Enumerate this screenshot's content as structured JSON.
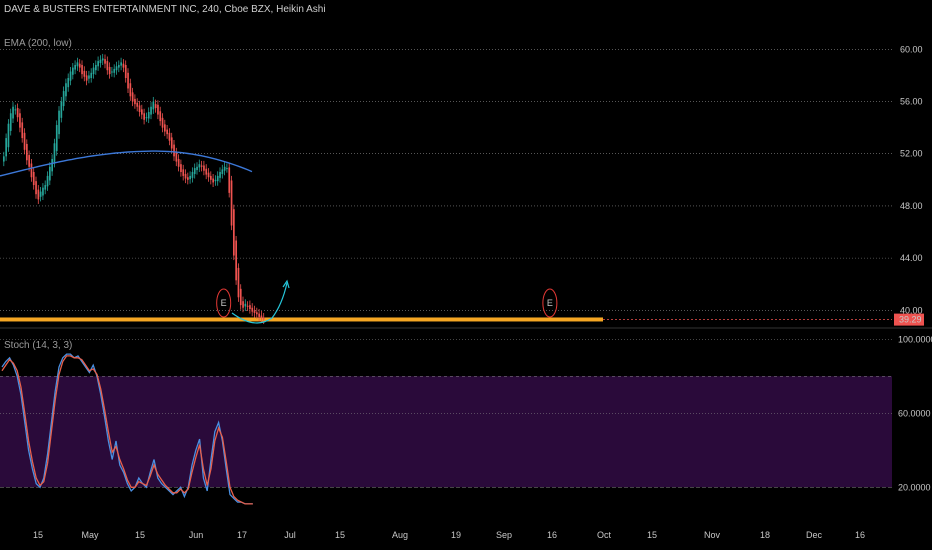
{
  "header": {
    "title": "DAVE & BUSTERS ENTERTAINMENT INC, 240, Cboe BZX, Heikin Ashi",
    "ema_label": "EMA (200, low)",
    "stoch_label": "Stoch (14, 3, 3)"
  },
  "colors": {
    "background": "#000000",
    "candle_up": "#26a69a",
    "candle_down": "#ef5350",
    "ema": "#3c78d8",
    "support_line": "#f5a623",
    "stoch_k": "#4a90e2",
    "stoch_d": "#e8604c",
    "stoch_band": "#2a0a3a",
    "grid": "#8a8a8a",
    "price_tag": "#ef5350",
    "earnings_marker": "#e53935",
    "projection_arrow": "#26c6da"
  },
  "chart_data": [
    {
      "type": "candlestick",
      "title": "DAVE & BUSTERS ENTERTAINMENT INC, 240, Cboe BZX, Heikin Ashi",
      "y_ticks": [
        "60.00",
        "56.00",
        "52.00",
        "48.00",
        "44.00",
        "40.00"
      ],
      "ylim": [
        38.8,
        62.4
      ],
      "x_ticks": [
        "15",
        "May",
        "15",
        "Jun",
        "17",
        "Jul",
        "15",
        "Aug",
        "19",
        "Sep",
        "16",
        "Oct",
        "15",
        "Nov",
        "18",
        "Dec",
        "16"
      ],
      "last_price_label": "39.29",
      "last_price": 39.29,
      "support_level": 39.3,
      "ema": {
        "name": "EMA (200, low)",
        "from": 50.3,
        "peak": 52.2,
        "to": 50.6
      },
      "candles_close": [
        51.8,
        53.2,
        54.3,
        55.1,
        55.6,
        55.4,
        54.8,
        54.0,
        53.2,
        52.3,
        51.5,
        51.0,
        50.2,
        49.6,
        48.9,
        48.5,
        49.1,
        49.4,
        49.6,
        50.3,
        51.0,
        51.6,
        52.8,
        54.2,
        55.3,
        56.0,
        56.8,
        57.4,
        57.8,
        58.3,
        58.6,
        58.8,
        59.0,
        58.6,
        58.1,
        57.9,
        57.6,
        58.0,
        58.2,
        58.6,
        58.8,
        59.1,
        59.2,
        59.3,
        58.9,
        58.4,
        58.1,
        58.3,
        58.5,
        58.7,
        58.8,
        59.0,
        58.6,
        57.8,
        57.0,
        56.4,
        56.0,
        55.8,
        55.6,
        55.2,
        55.0,
        54.6,
        54.8,
        55.2,
        55.6,
        56.0,
        55.5,
        55.0,
        54.5,
        54.0,
        53.7,
        53.5,
        53.0,
        52.4,
        51.8,
        51.4,
        51.0,
        50.6,
        50.3,
        50.1,
        50.0,
        50.3,
        50.6,
        50.9,
        51.0,
        51.2,
        51.0,
        50.7,
        50.4,
        50.2,
        50.0,
        49.8,
        50.0,
        50.3,
        50.6,
        50.8,
        51.0,
        50.9,
        49.0,
        46.5,
        44.2,
        42.3,
        41.0,
        40.4,
        40.2,
        40.5,
        40.3,
        40.1,
        39.9,
        39.8,
        39.7,
        39.5,
        39.4,
        39.3
      ],
      "earnings_markers": [
        {
          "label": "E",
          "x_frac": 0.24
        },
        {
          "label": "E",
          "x_frac": 0.59
        }
      ]
    },
    {
      "type": "line",
      "title": "Stoch (14, 3, 3)",
      "y_ticks": [
        "100.0000",
        "60.0000",
        "20.0000"
      ],
      "ylim": [
        5,
        105
      ],
      "band": [
        20,
        80
      ],
      "series": [
        {
          "name": "%K",
          "values": [
            85,
            88,
            90,
            86,
            80,
            70,
            55,
            40,
            30,
            22,
            20,
            25,
            38,
            55,
            72,
            85,
            90,
            92,
            92,
            90,
            91,
            88,
            85,
            82,
            86,
            80,
            70,
            58,
            45,
            35,
            45,
            32,
            28,
            22,
            18,
            20,
            25,
            22,
            20,
            28,
            35,
            25,
            22,
            20,
            18,
            16,
            18,
            20,
            15,
            20,
            32,
            40,
            46,
            25,
            18,
            35,
            50,
            55,
            45,
            30,
            16,
            14,
            12,
            12,
            11,
            11,
            11
          ]
        },
        {
          "name": "%D",
          "values": [
            83,
            86,
            89,
            87,
            83,
            74,
            60,
            45,
            34,
            25,
            21,
            23,
            33,
            50,
            67,
            81,
            88,
            91,
            91,
            90,
            90,
            89,
            86,
            83,
            84,
            81,
            73,
            62,
            50,
            39,
            42,
            35,
            30,
            24,
            20,
            20,
            23,
            22,
            21,
            26,
            32,
            27,
            24,
            21,
            19,
            17,
            17,
            19,
            17,
            19,
            28,
            36,
            43,
            30,
            21,
            30,
            45,
            52,
            47,
            34,
            20,
            15,
            13,
            12,
            11,
            11,
            11
          ]
        }
      ]
    }
  ]
}
